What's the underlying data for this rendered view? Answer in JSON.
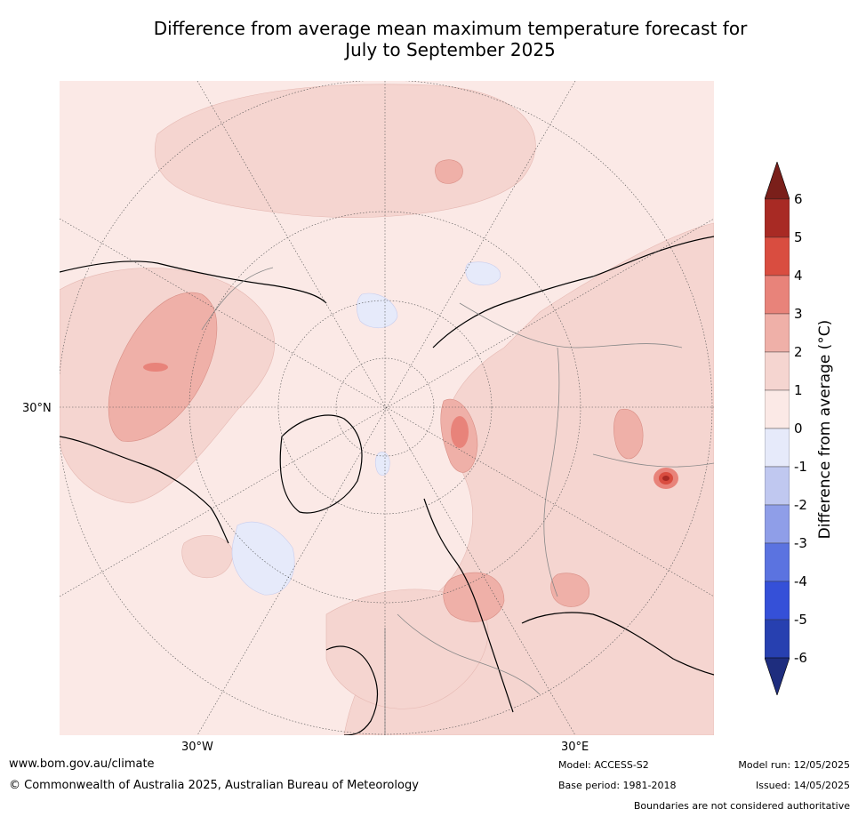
{
  "title_line1": "Difference from average mean maximum temperature forecast for",
  "title_line2": "July to September 2025",
  "map": {
    "projection": "north-polar-stereographic",
    "lat_label": "30°N",
    "lon_labels": [
      "30°W",
      "30°E"
    ],
    "background_color": "#fbe9e6"
  },
  "colorbar": {
    "label": "Difference from average ($^\\circ$C)",
    "label_display": "Difference from average (°C)",
    "ticks": [
      "6",
      "5",
      "4",
      "3",
      "2",
      "1",
      "0",
      "-1",
      "-2",
      "-3",
      "-4",
      "-5",
      "-6"
    ],
    "extend": "both",
    "colors": [
      "#7a1f1a",
      "#a82a24",
      "#d94d40",
      "#e8837a",
      "#efb0a8",
      "#f5d5d0",
      "#fbe9e6",
      "#e6eafa",
      "#c0c8f0",
      "#8f9ee8",
      "#5b73e0",
      "#3550d8",
      "#2740b0",
      "#1e2d7e"
    ]
  },
  "footer": {
    "website": "www.bom.gov.au/climate",
    "copyright": "© Commonwealth of Australia 2025, Australian Bureau of Meteorology",
    "model": "Model: ACCESS-S2",
    "base_period": "Base period: 1981-2018",
    "model_run": "Model run: 12/05/2025",
    "issued": "Issued: 14/05/2025",
    "disclaimer": "Boundaries are not considered authoritative"
  }
}
